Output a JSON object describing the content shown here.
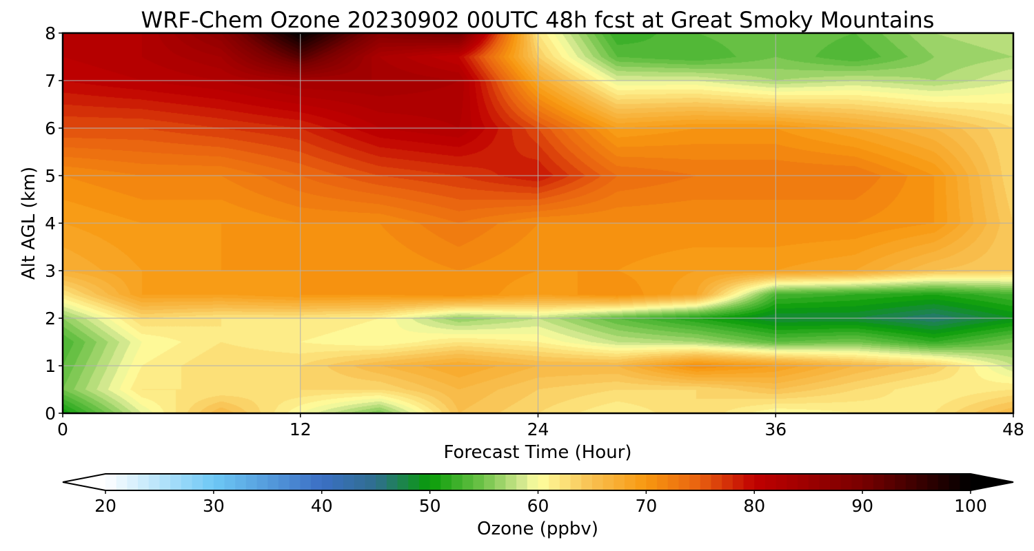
{
  "chart_data": {
    "type": "heatmap",
    "title": "WRF-Chem Ozone  20230902 00UTC 48h fcst at Great Smoky Mountains",
    "xlabel": "Forecast Time (Hour)",
    "ylabel": "Alt AGL (km)",
    "xlim": [
      0,
      48
    ],
    "ylim": [
      0,
      8
    ],
    "x_ticks": [
      0,
      12,
      24,
      36,
      48
    ],
    "y_ticks": [
      0,
      1,
      2,
      3,
      4,
      5,
      6,
      7,
      8
    ],
    "grid": true,
    "x": [
      0,
      4,
      8,
      12,
      16,
      20,
      24,
      28,
      32,
      36,
      40,
      44,
      48
    ],
    "y": [
      0,
      0.5,
      1,
      1.5,
      2,
      2.5,
      3,
      4,
      5,
      6,
      7,
      7.5,
      8
    ],
    "z": [
      [
        50,
        59,
        66,
        60,
        55,
        65,
        63,
        61,
        63,
        60,
        61,
        62,
        66
      ],
      [
        55,
        62,
        62,
        63,
        63,
        66,
        64,
        63,
        63,
        65,
        63,
        61,
        62
      ],
      [
        54,
        61,
        63,
        63,
        66,
        68,
        66,
        66,
        71,
        69,
        66,
        64,
        58
      ],
      [
        53,
        60,
        62,
        61,
        60,
        62,
        61,
        58,
        57,
        54,
        55,
        52,
        55
      ],
      [
        56,
        63,
        62,
        62,
        61,
        56,
        58,
        54,
        51,
        48,
        48,
        46,
        49
      ],
      [
        62,
        69,
        69,
        70,
        70,
        71,
        69,
        71,
        68,
        53,
        52,
        51,
        53
      ],
      [
        67,
        69,
        70,
        70,
        70,
        71,
        70,
        70,
        69,
        69,
        68,
        65,
        64
      ],
      [
        69,
        70,
        70,
        71,
        71,
        73,
        71,
        71,
        71,
        71,
        71,
        70,
        64
      ],
      [
        71,
        72,
        72,
        74,
        76,
        77,
        79,
        74,
        73,
        73,
        73,
        70,
        63
      ],
      [
        76,
        76,
        77,
        78,
        81,
        82,
        76,
        69,
        70,
        70,
        68,
        66,
        63
      ],
      [
        80,
        81,
        82,
        84,
        84,
        83,
        68,
        59,
        59,
        57,
        58,
        57,
        59
      ],
      [
        81,
        82,
        84,
        93,
        83,
        80,
        64,
        54,
        53,
        55,
        53,
        56,
        57
      ],
      [
        81,
        82,
        87,
        100,
        88,
        90,
        62,
        52,
        54,
        55,
        54,
        57,
        58
      ]
    ],
    "colorbar": {
      "label": "Ozone  (ppbv)",
      "min": 20,
      "max": 100,
      "ticks": [
        20,
        30,
        40,
        50,
        60,
        70,
        80,
        90,
        100
      ],
      "extend": "both",
      "stops": [
        [
          20,
          "#ffffff"
        ],
        [
          30,
          "#6ec8f5"
        ],
        [
          40,
          "#3b6fc4"
        ],
        [
          45,
          "#2f6e8e"
        ],
        [
          50,
          "#089c08"
        ],
        [
          55,
          "#72c44b"
        ],
        [
          58.5,
          "#d2e88e"
        ],
        [
          60,
          "#ffffa0"
        ],
        [
          65,
          "#f8c050"
        ],
        [
          70,
          "#f89810"
        ],
        [
          75,
          "#e86010"
        ],
        [
          80,
          "#c00000"
        ],
        [
          90,
          "#780000"
        ],
        [
          100,
          "#000000"
        ]
      ]
    }
  }
}
